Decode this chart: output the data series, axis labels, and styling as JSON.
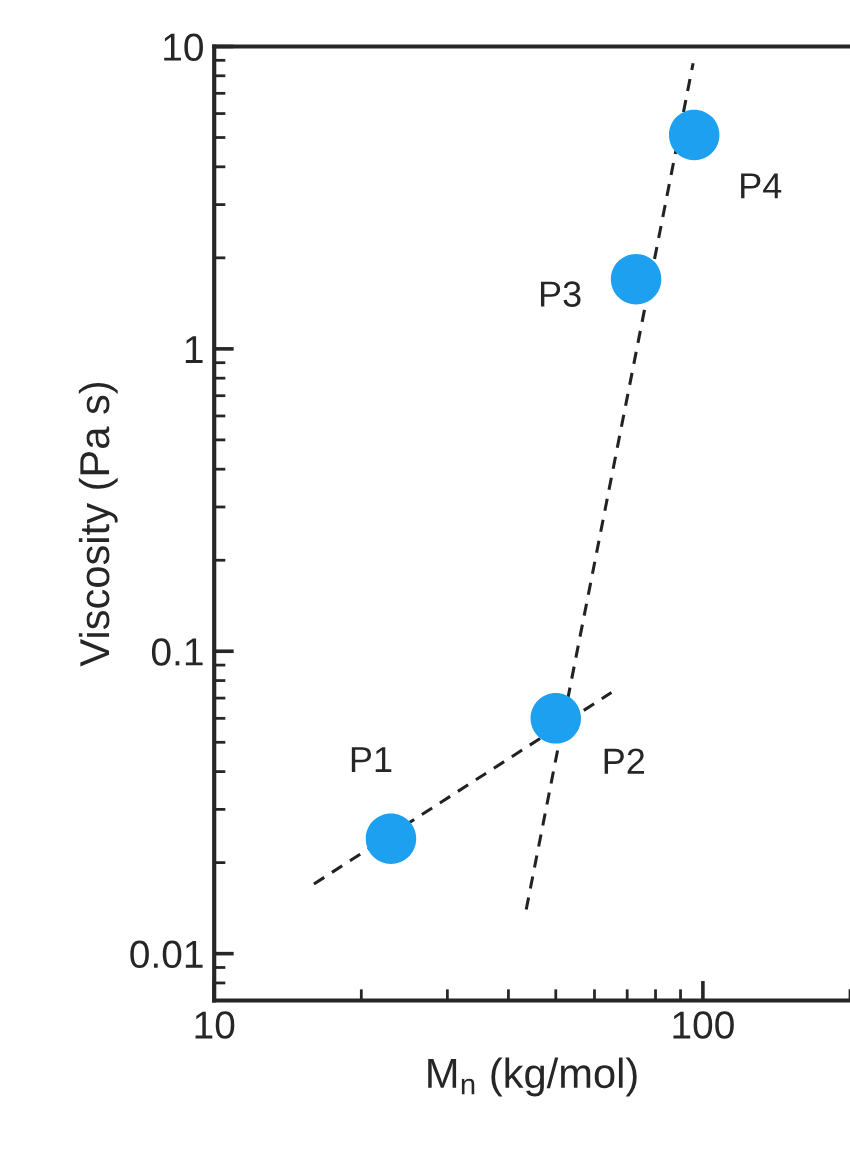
{
  "chart_data": {
    "type": "scatter",
    "xlabel": "M$_{n}$ (kg/mol)",
    "ylabel": "Viscosity (Pa s)",
    "log": "xy",
    "grid": false,
    "legend": false,
    "marker": "circle",
    "x": [
      23,
      50,
      73,
      96
    ],
    "series": [
      {
        "color": "#1ea0f0",
        "values": [
          0.024,
          0.06,
          1.7,
          5.1
        ]
      },
      {
        "type": "line",
        "color": "#222222",
        "line_style": "dashed",
        "marker": "none",
        "x": [
          16,
          65
        ],
        "values": [
          0.017,
          0.073
        ]
      },
      {
        "type": "line",
        "color": "#222222",
        "line_style": "dashed",
        "marker": "none",
        "x": [
          43.5,
          95.5
        ],
        "values": [
          0.014,
          8.8
        ]
      }
    ],
    "annotations": [
      {
        "text": "P1",
        "x": 23,
        "y": 0.024
      },
      {
        "text": "P2",
        "x": 50,
        "y": 0.06
      },
      {
        "text": "P3",
        "x": 73,
        "y": 1.7
      },
      {
        "text": "P4",
        "x": 96,
        "y": 5.1
      }
    ],
    "xlim": [
      10,
      200
    ],
    "xticks": [
      10,
      100
    ],
    "ylim": [
      0.007,
      10
    ],
    "yticks": [
      0.01,
      0.1,
      1,
      10
    ]
  }
}
